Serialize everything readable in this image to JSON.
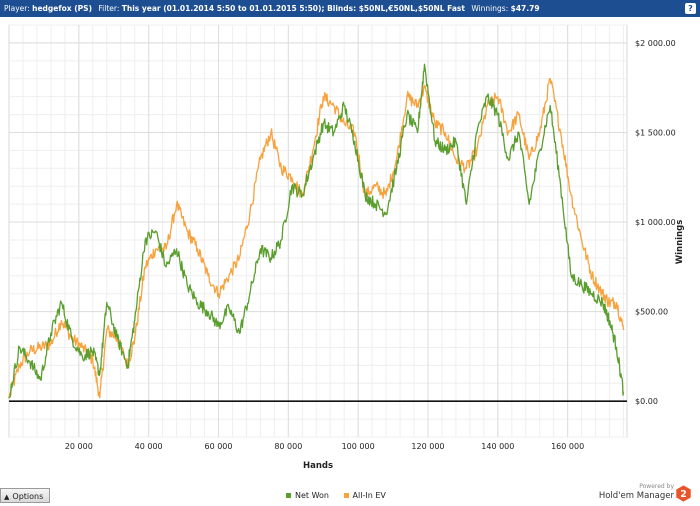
{
  "header": {
    "player_label": "Player:",
    "player_value": "hedgefox (PS)",
    "filter_label": "Filter:",
    "filter_value": "This year (01.01.2014 5:50 to 01.01.2015 5:50); Blinds: $50NL,€50NL,$50NL Fast",
    "winnings_label": "Winnings:",
    "winnings_value": "$47.79",
    "help_glyph": "?"
  },
  "footer": {
    "options_label": "Options",
    "options_arrow": "▲",
    "powered_by": "Powered by",
    "brand": "Hold'em Manager",
    "logo_digit": "2"
  },
  "chart_data": {
    "type": "line",
    "xlabel": "Hands",
    "ylabel": "Winnings",
    "xlim": [
      0,
      177000
    ],
    "ylim": [
      -200,
      2100
    ],
    "x_ticks": [
      20000,
      40000,
      60000,
      80000,
      100000,
      120000,
      140000,
      160000
    ],
    "x_tick_labels": [
      "20 000",
      "40 000",
      "60 000",
      "80 000",
      "100 000",
      "120 000",
      "140 000",
      "160 000"
    ],
    "y_ticks": [
      0,
      500,
      1000,
      1500,
      2000
    ],
    "y_tick_labels": [
      "$0.00",
      "$500.00",
      "$1 000.00",
      "$1 500.00",
      "$2 000.00"
    ],
    "grid": true,
    "zero_line": true,
    "legend_position": "bottom-center",
    "x": [
      0,
      3000,
      6000,
      9000,
      12000,
      15000,
      18000,
      21000,
      24000,
      26000,
      28000,
      31000,
      34000,
      36000,
      39000,
      42000,
      45000,
      48000,
      51000,
      54000,
      57000,
      60000,
      63000,
      66000,
      69000,
      72000,
      75000,
      78000,
      81000,
      84000,
      87000,
      90000,
      93000,
      96000,
      99000,
      102000,
      105000,
      108000,
      111000,
      114000,
      117000,
      119000,
      122000,
      125000,
      128000,
      131000,
      134000,
      137000,
      140000,
      143000,
      146000,
      149000,
      152000,
      155000,
      158000,
      161000,
      164000,
      167000,
      170000,
      172000,
      174000,
      176000
    ],
    "series": [
      {
        "name": "Net Won",
        "color": "#5a9e2e",
        "values": [
          20,
          300,
          220,
          120,
          380,
          550,
          350,
          250,
          280,
          150,
          550,
          350,
          200,
          450,
          900,
          950,
          750,
          850,
          650,
          550,
          500,
          420,
          520,
          380,
          600,
          850,
          800,
          900,
          1200,
          1150,
          1350,
          1550,
          1500,
          1650,
          1450,
          1150,
          1100,
          1050,
          1300,
          1600,
          1500,
          1880,
          1450,
          1400,
          1450,
          1100,
          1500,
          1700,
          1600,
          1350,
          1500,
          1100,
          1400,
          1650,
          1200,
          700,
          650,
          600,
          550,
          450,
          300,
          50
        ]
      },
      {
        "name": "All-In EV",
        "color": "#f7a23c",
        "values": [
          20,
          200,
          280,
          300,
          320,
          450,
          350,
          300,
          230,
          20,
          400,
          350,
          200,
          350,
          750,
          850,
          850,
          1100,
          950,
          850,
          700,
          600,
          700,
          800,
          1050,
          1350,
          1500,
          1300,
          1250,
          1150,
          1400,
          1700,
          1650,
          1550,
          1500,
          1150,
          1200,
          1150,
          1350,
          1700,
          1650,
          1750,
          1550,
          1500,
          1350,
          1300,
          1400,
          1650,
          1700,
          1500,
          1600,
          1350,
          1500,
          1800,
          1500,
          1150,
          900,
          700,
          600,
          550,
          550,
          400
        ]
      }
    ]
  }
}
